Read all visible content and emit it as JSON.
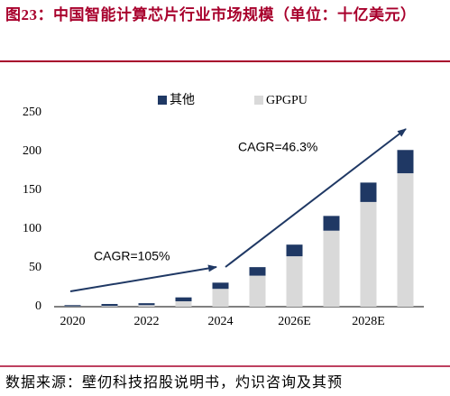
{
  "chart_data": {
    "type": "bar",
    "stacked": true,
    "title": "图23：中国智能计算芯片行业市场规模（单位：十亿美元）",
    "source": "数据来源：壁仞科技招股说明书，灼识咨询及其预",
    "categories": [
      "2020",
      null,
      "2022",
      null,
      "2024",
      null,
      "2026E",
      null,
      "2028E",
      null
    ],
    "series": [
      {
        "name": "GPGPU",
        "color": "#d9d9d9",
        "values": [
          0.5,
          1,
          2,
          7,
          23,
          40,
          65,
          98,
          135,
          172
        ]
      },
      {
        "name": "其他",
        "color": "#1f3864",
        "values": [
          1.5,
          2.5,
          2.5,
          5,
          8,
          11,
          15,
          19,
          25,
          30
        ]
      }
    ],
    "ylim": [
      0,
      250
    ],
    "yticks": [
      0,
      50,
      100,
      150,
      200,
      250
    ],
    "grid": false,
    "annotations": [
      "CAGR=105%",
      "CAGR=46.3%"
    ]
  }
}
